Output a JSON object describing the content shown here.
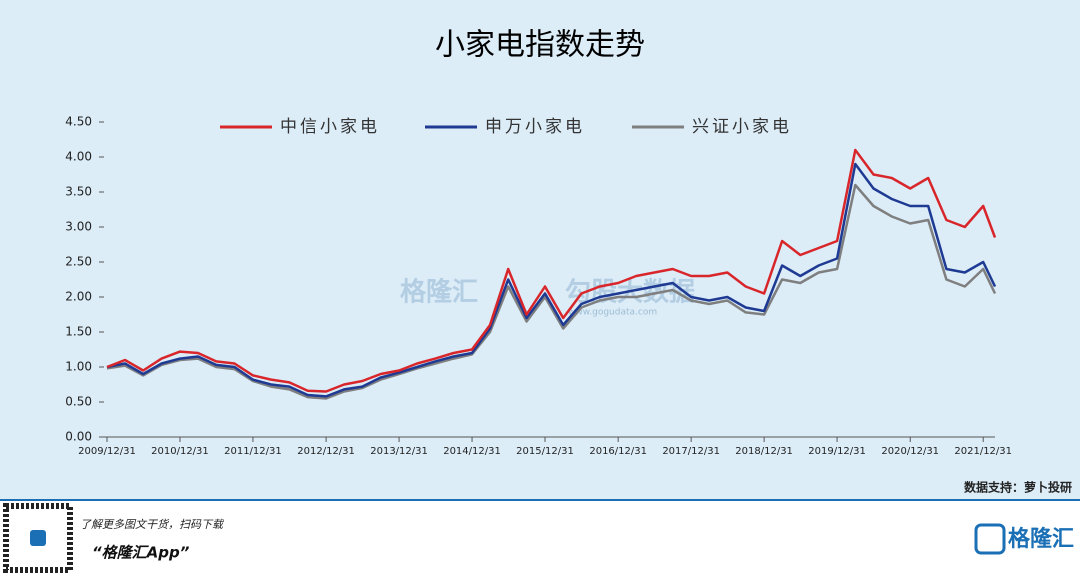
{
  "chart_data": {
    "type": "line",
    "title": "小家电指数走势",
    "x": [
      "2009/12/31",
      "2010/03/31",
      "2010/06/30",
      "2010/09/30",
      "2010/12/31",
      "2011/03/31",
      "2011/06/30",
      "2011/09/30",
      "2011/12/31",
      "2012/03/31",
      "2012/06/30",
      "2012/09/30",
      "2012/12/31",
      "2013/03/31",
      "2013/06/30",
      "2013/09/30",
      "2013/12/31",
      "2014/03/31",
      "2014/06/30",
      "2014/09/30",
      "2014/12/31",
      "2015/03/31",
      "2015/06/30",
      "2015/09/30",
      "2015/12/31",
      "2016/03/31",
      "2016/06/30",
      "2016/09/30",
      "2016/12/31",
      "2017/03/31",
      "2017/06/30",
      "2017/09/30",
      "2017/12/31",
      "2018/03/31",
      "2018/06/30",
      "2018/09/30",
      "2018/12/31",
      "2019/03/31",
      "2019/06/30",
      "2019/09/30",
      "2019/12/31",
      "2020/03/31",
      "2020/06/30",
      "2020/09/30",
      "2020/12/31",
      "2021/03/31",
      "2021/06/30",
      "2021/09/30",
      "2021/12/31",
      "2022/02/28"
    ],
    "series": [
      {
        "name": "中信小家电",
        "color": "#d9262b",
        "values": [
          1.0,
          1.1,
          0.95,
          1.12,
          1.22,
          1.2,
          1.08,
          1.05,
          0.88,
          0.82,
          0.78,
          0.66,
          0.65,
          0.75,
          0.8,
          0.9,
          0.95,
          1.05,
          1.12,
          1.2,
          1.25,
          1.6,
          2.4,
          1.75,
          2.15,
          1.7,
          2.05,
          2.15,
          2.2,
          2.3,
          2.35,
          2.4,
          2.3,
          2.3,
          2.35,
          2.15,
          2.05,
          2.8,
          2.6,
          2.7,
          2.8,
          4.1,
          3.75,
          3.7,
          3.55,
          3.7,
          3.1,
          3.0,
          3.3,
          2.85
        ]
      },
      {
        "name": "申万小家电",
        "color": "#1f3a93",
        "values": [
          1.0,
          1.05,
          0.9,
          1.05,
          1.12,
          1.15,
          1.03,
          1.0,
          0.82,
          0.75,
          0.72,
          0.6,
          0.58,
          0.68,
          0.72,
          0.85,
          0.92,
          1.0,
          1.08,
          1.15,
          1.2,
          1.55,
          2.25,
          1.7,
          2.05,
          1.6,
          1.9,
          2.0,
          2.05,
          2.1,
          2.15,
          2.2,
          2.0,
          1.95,
          2.0,
          1.85,
          1.8,
          2.45,
          2.3,
          2.45,
          2.55,
          3.9,
          3.55,
          3.4,
          3.3,
          3.3,
          2.4,
          2.35,
          2.5,
          2.15
        ]
      },
      {
        "name": "兴证小家电",
        "color": "#7f7f7f",
        "values": [
          0.98,
          1.02,
          0.88,
          1.03,
          1.1,
          1.12,
          1.0,
          0.97,
          0.8,
          0.72,
          0.68,
          0.57,
          0.55,
          0.65,
          0.7,
          0.82,
          0.9,
          0.98,
          1.05,
          1.12,
          1.18,
          1.5,
          2.15,
          1.65,
          2.0,
          1.55,
          1.85,
          1.95,
          2.0,
          2.0,
          2.05,
          2.1,
          1.95,
          1.9,
          1.95,
          1.78,
          1.75,
          2.25,
          2.2,
          2.35,
          2.4,
          3.6,
          3.3,
          3.15,
          3.05,
          3.1,
          2.25,
          2.15,
          2.4,
          2.05
        ]
      }
    ],
    "xlim": [
      "2009/12/31",
      "2022/02/28"
    ],
    "xticks": [
      "2009/12/31",
      "2010/12/31",
      "2011/12/31",
      "2012/12/31",
      "2013/12/31",
      "2014/12/31",
      "2015/12/31",
      "2016/12/31",
      "2017/12/31",
      "2018/12/31",
      "2019/12/31",
      "2020/12/31",
      "2021/12/31"
    ],
    "ylim": [
      0,
      4.5
    ],
    "yticks": [
      {
        "value": 0,
        "label": "0.00"
      },
      {
        "value": 0.5,
        "label": "0.50"
      },
      {
        "value": 1,
        "label": "1.00"
      },
      {
        "value": 1.5,
        "label": "1.50"
      },
      {
        "value": 2,
        "label": "2.00"
      },
      {
        "value": 2.5,
        "label": "2.50"
      },
      {
        "value": 3,
        "label": "3.00"
      },
      {
        "value": 3.5,
        "label": "3.50"
      },
      {
        "value": 4,
        "label": "4.00"
      },
      {
        "value": 4.5,
        "label": "4.50"
      }
    ],
    "legend": "top",
    "watermark": {
      "brand": "格隆汇",
      "product": "勾股大数据",
      "url": "www.gogudata.com"
    },
    "source": "数据支持：萝卜投研"
  },
  "footer": {
    "prompt": "了解更多图文干货，扫码下载",
    "app": "“格隆汇App”",
    "logo": "格隆汇"
  }
}
